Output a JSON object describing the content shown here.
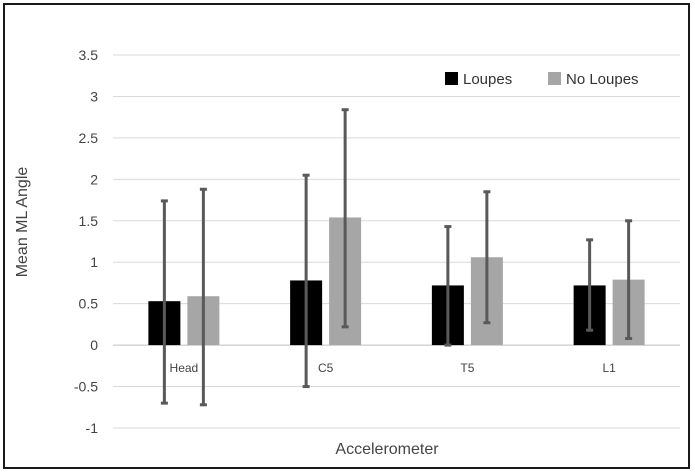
{
  "chart_data": {
    "type": "bar",
    "title": "",
    "xlabel": "Accelerometer",
    "ylabel": "Mean ML Angle",
    "ylim": [
      -1,
      3.5
    ],
    "ytick_step": 0.5,
    "yticks": [
      "3.5",
      "3",
      "2.5",
      "2",
      "1.5",
      "1",
      "0.5",
      "0",
      "-0.5",
      "-1"
    ],
    "categories": [
      "Head",
      "C5",
      "T5",
      "L1"
    ],
    "grid": true,
    "legend_position": "top-right",
    "series": [
      {
        "name": "Loupes",
        "color": "#000000",
        "values": [
          0.53,
          0.78,
          0.72,
          0.72
        ],
        "error_low": [
          -0.7,
          -0.5,
          0.0,
          0.18
        ],
        "error_high": [
          1.74,
          2.05,
          1.43,
          1.27
        ]
      },
      {
        "name": "No Loupes",
        "color": "#a6a6a6",
        "values": [
          0.59,
          1.54,
          1.06,
          0.79
        ],
        "error_low": [
          -0.72,
          0.22,
          0.27,
          0.08
        ],
        "error_high": [
          1.88,
          2.84,
          1.85,
          1.5
        ]
      }
    ],
    "error_bar_color": "#595959"
  }
}
